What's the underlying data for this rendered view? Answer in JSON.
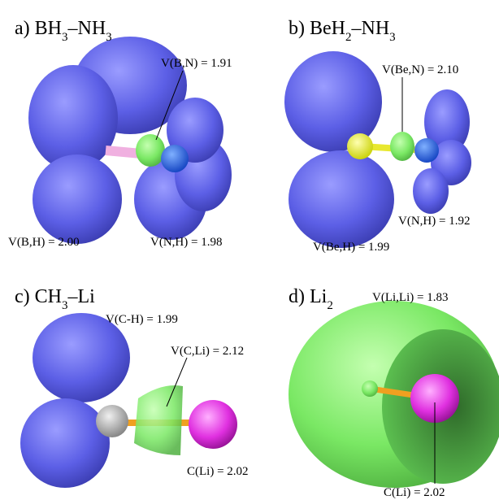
{
  "panels": [
    {
      "title_parts": [
        "a) BH",
        "3",
        "–NH",
        "3"
      ],
      "labels": [
        "V(B,N) = 1.91",
        "V(B,H) = 2.00",
        "V(N,H) = 1.98"
      ]
    },
    {
      "title_parts": [
        "b) BeH",
        "2",
        "–NH",
        "3"
      ],
      "labels": [
        "V(Be,N) = 2.10",
        "V(N,H) = 1.92",
        "V(Be,H) = 1.99"
      ]
    },
    {
      "title_parts": [
        "c) CH",
        "3",
        "–Li"
      ],
      "labels": [
        "V(C-H) = 1.99",
        "V(C,Li) = 2.12",
        "C(Li) = 2.02"
      ]
    },
    {
      "title_parts": [
        "d) Li",
        "2"
      ],
      "labels": [
        "V(Li,Li) = 1.83",
        "C(Li) = 2.02"
      ]
    }
  ]
}
